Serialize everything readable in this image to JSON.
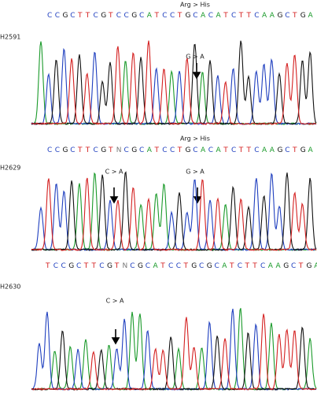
{
  "panels": [
    {
      "label": "H2591",
      "mutation": "Arg > His",
      "sequence": "CCGCTTCGTCCGCATCCTGCACATCTTCAAGCTGA",
      "annotations": [
        "G > A"
      ]
    },
    {
      "label": "H2629",
      "mutation": "Arg > His",
      "sequence": "CCGCTTCGTNCGCATCCTGCACATCTTCAAGCTGA",
      "annotations": [
        "C > A",
        "G > A"
      ]
    },
    {
      "label": "H2630",
      "sequence": "TCCGCTTCGTNCGCATCCTGCGCATCTTCAAGCTGA",
      "annotations": [
        "C > A"
      ]
    }
  ]
}
